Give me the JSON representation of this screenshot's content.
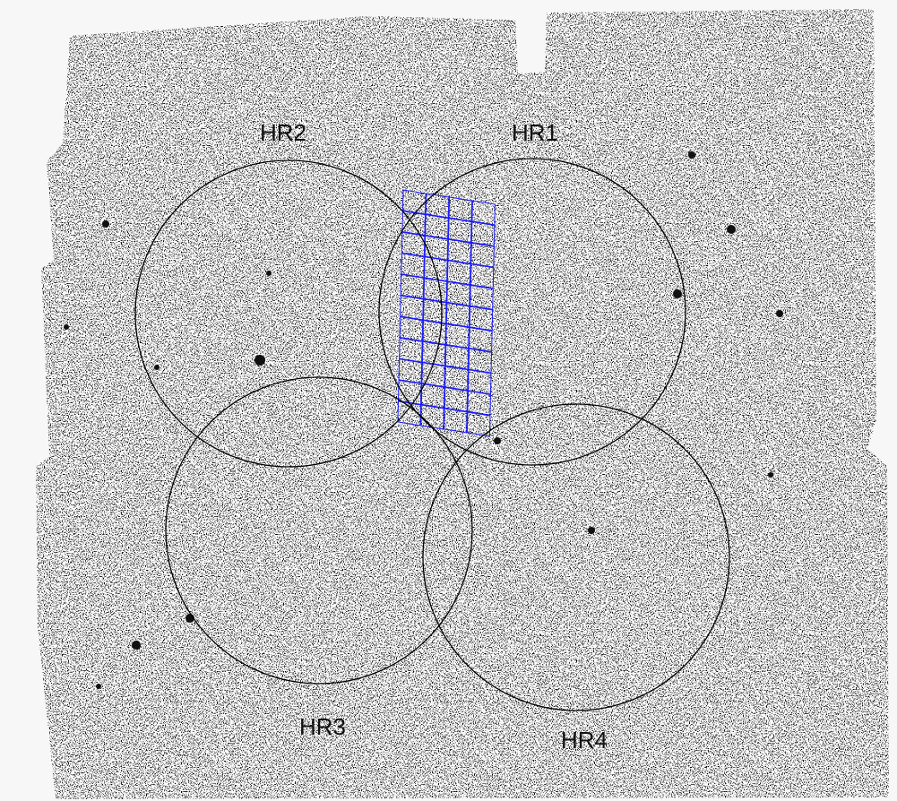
{
  "labels": {
    "hr1": "HR1",
    "hr2": "HR2",
    "hr3": "HR3",
    "hr4": "HR4"
  }
}
